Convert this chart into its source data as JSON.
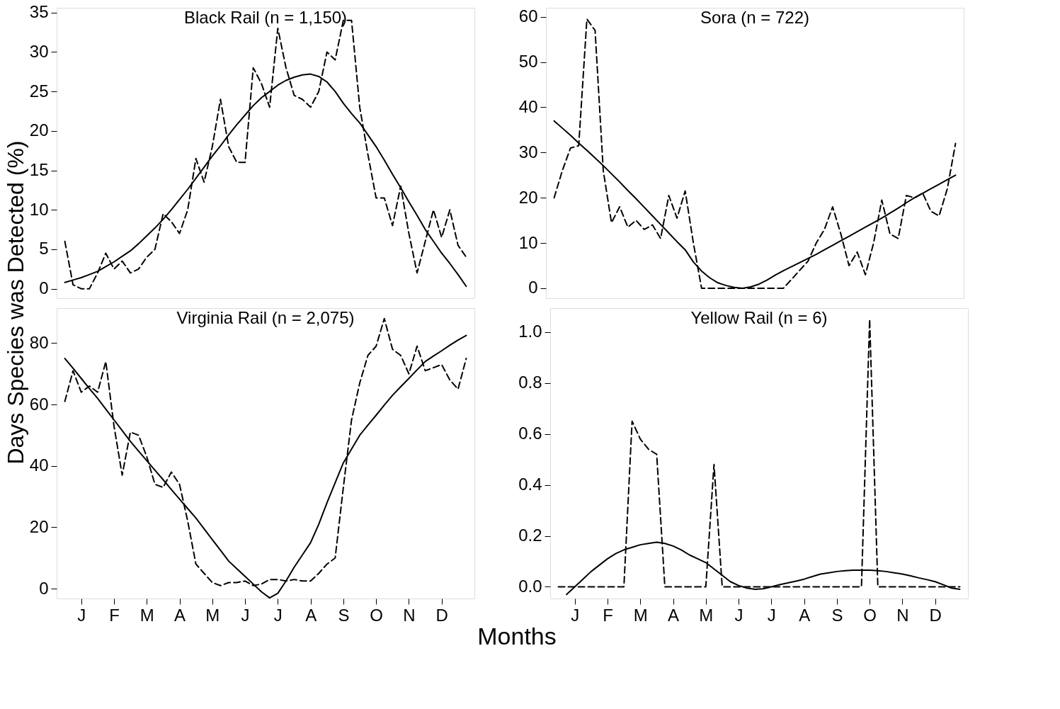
{
  "chart_data": [
    {
      "type": "line",
      "title": "Black Rail (n = 1,150)",
      "ylabel": "Days Species was Detected (%)",
      "ylim": [
        -1.2,
        35.6
      ],
      "yticks": [
        0,
        5,
        10,
        15,
        20,
        25,
        30,
        35
      ],
      "tick_labels": "y",
      "grid": false,
      "categories": [
        null,
        null,
        null,
        null,
        null,
        null,
        null,
        null,
        null,
        null,
        null,
        null,
        null,
        null,
        null,
        null,
        null,
        null,
        null,
        null,
        null,
        null,
        null,
        null,
        null,
        null,
        null,
        null,
        null,
        null,
        null,
        null,
        null,
        null,
        null,
        null,
        null,
        null,
        null,
        null,
        null,
        null,
        null,
        null,
        null,
        null,
        null,
        null,
        null,
        null
      ],
      "series": [
        {
          "color": "#000000",
          "line_style": "dashed",
          "values": [
            6,
            0.5,
            0,
            0,
            2,
            4.5,
            2.5,
            3.5,
            2,
            2.5,
            4,
            5,
            9.5,
            8.5,
            7,
            10,
            16.5,
            13.5,
            18,
            24,
            18,
            16,
            16,
            28,
            26,
            23,
            33,
            28,
            24.5,
            24,
            23,
            25,
            30,
            29,
            34,
            34,
            23,
            17,
            11.5,
            11.5,
            8,
            13,
            7,
            2,
            6,
            10,
            6.5,
            10,
            5.5,
            4
          ]
        },
        {
          "color": "#000000",
          "line_style": "solid",
          "values": [
            0.8,
            1.1,
            1.4,
            1.8,
            2.2,
            2.8,
            3.4,
            4.1,
            4.8,
            5.7,
            6.7,
            7.7,
            8.8,
            10,
            11.3,
            12.6,
            14,
            15.4,
            16.8,
            18.1,
            19.5,
            20.8,
            22,
            23.2,
            24.2,
            25,
            25.8,
            26.4,
            26.8,
            27.1,
            27.2,
            26.9,
            26.2,
            25,
            23.5,
            22.2,
            21,
            19.5,
            18,
            16.3,
            14.5,
            12.8,
            11,
            9.3,
            7.5,
            6,
            4.5,
            3.2,
            1.8,
            0.3
          ]
        }
      ]
    },
    {
      "type": "line",
      "title": "Sora (n = 722)",
      "ylim": [
        -2.2,
        62
      ],
      "yticks": [
        0,
        10,
        20,
        30,
        40,
        50,
        60
      ],
      "tick_labels": "y",
      "grid": false,
      "categories": [
        null,
        null,
        null,
        null,
        null,
        null,
        null,
        null,
        null,
        null,
        null,
        null,
        null,
        null,
        null,
        null,
        null,
        null,
        null,
        null,
        null,
        null,
        null,
        null,
        null,
        null,
        null,
        null,
        null,
        null,
        null,
        null,
        null,
        null,
        null,
        null,
        null,
        null,
        null,
        null,
        null,
        null,
        null,
        null,
        null,
        null,
        null,
        null,
        null,
        null
      ],
      "series": [
        {
          "color": "#000000",
          "line_style": "dashed",
          "values": [
            20,
            26,
            31,
            31.5,
            59.5,
            57,
            26,
            14.5,
            18,
            13.5,
            15,
            13,
            14,
            11,
            20.5,
            15.5,
            21.5,
            10,
            0,
            0,
            0,
            0,
            0,
            0,
            0,
            0,
            0,
            0,
            0,
            2,
            4,
            6,
            10,
            13,
            18,
            12,
            5,
            8,
            3,
            10,
            19.5,
            12,
            11,
            20.5,
            20,
            21,
            17,
            16,
            22,
            32
          ]
        },
        {
          "color": "#000000",
          "line_style": "solid",
          "values": [
            37,
            35.4,
            33.8,
            32.1,
            30.5,
            28.8,
            27.1,
            25.3,
            23.5,
            21.6,
            19.8,
            17.9,
            16,
            14.1,
            12.2,
            10.3,
            8.5,
            5.8,
            3.8,
            2.3,
            1.2,
            0.6,
            0.2,
            0,
            0.3,
            0.9,
            1.8,
            2.9,
            3.9,
            4.8,
            5.7,
            6.6,
            7.5,
            8.5,
            9.5,
            10.5,
            11.5,
            12.5,
            13.5,
            14.5,
            15.5,
            16.6,
            17.7,
            18.9,
            20,
            21,
            22,
            23,
            24,
            25
          ]
        }
      ]
    },
    {
      "type": "line",
      "title": "Virginia Rail (n = 2,075)",
      "xlabel": "Months",
      "ylim": [
        -3.2,
        91.4
      ],
      "yticks": [
        0,
        20,
        40,
        60,
        80
      ],
      "grid": false,
      "categories": [
        null,
        null,
        "J",
        null,
        null,
        null,
        "F",
        null,
        null,
        null,
        "M",
        null,
        null,
        null,
        "A",
        null,
        null,
        null,
        "M",
        null,
        null,
        null,
        "J",
        null,
        null,
        null,
        "J",
        null,
        null,
        null,
        "A",
        null,
        null,
        null,
        "S",
        null,
        null,
        null,
        "O",
        null,
        null,
        null,
        "N",
        null,
        null,
        null,
        "D",
        null,
        null,
        null
      ],
      "series": [
        {
          "color": "#000000",
          "line_style": "dashed",
          "values": [
            61,
            71,
            64,
            66,
            64,
            74,
            53,
            37,
            51,
            50,
            43,
            34,
            33,
            38,
            34,
            22,
            8,
            5,
            2,
            1,
            2,
            2,
            2.5,
            1,
            1.5,
            3,
            3,
            2.5,
            3,
            2.5,
            2.5,
            5,
            8,
            10,
            33,
            55,
            67,
            76,
            79,
            88,
            78,
            76,
            70,
            79,
            71,
            72,
            73,
            68,
            65,
            75
          ]
        },
        {
          "color": "#000000",
          "line_style": "solid",
          "values": [
            75,
            71.8,
            68.5,
            65.2,
            62,
            58.5,
            55,
            51.5,
            48,
            44.8,
            41.7,
            38.6,
            35.5,
            32.3,
            29.2,
            26.1,
            23,
            19.5,
            16,
            12.5,
            9,
            6.5,
            4,
            1.5,
            -1,
            -3,
            -1.5,
            2.5,
            7,
            11,
            15,
            21,
            28,
            34.5,
            41,
            45.5,
            50,
            53.3,
            56.5,
            59.8,
            63,
            65.8,
            68.5,
            71.3,
            74,
            75.8,
            77.5,
            79.3,
            81,
            82.5
          ]
        }
      ]
    },
    {
      "type": "line",
      "title": "Yellow Rail (n = 6)",
      "ylim": [
        -0.046,
        1.094
      ],
      "yticks": [
        {
          "value": 0,
          "label": "0.0"
        },
        0.2,
        0.4,
        0.6,
        0.8,
        {
          "value": 1,
          "label": "1.0"
        }
      ],
      "grid": false,
      "categories": [
        null,
        null,
        "J",
        null,
        null,
        null,
        "F",
        null,
        null,
        null,
        "M",
        null,
        null,
        null,
        "A",
        null,
        null,
        null,
        "M",
        null,
        null,
        null,
        "J",
        null,
        null,
        null,
        "J",
        null,
        null,
        null,
        "A",
        null,
        null,
        null,
        "S",
        null,
        null,
        null,
        "O",
        null,
        null,
        null,
        "N",
        null,
        null,
        null,
        "D",
        null,
        null,
        null
      ],
      "series": [
        {
          "color": "#000000",
          "line_style": "dashed",
          "values": [
            0,
            0,
            0,
            0,
            0,
            0,
            0,
            0,
            0,
            0.65,
            0.58,
            0.54,
            0.52,
            0,
            0,
            0,
            0,
            0,
            0,
            0.48,
            0,
            0,
            0,
            0,
            0,
            0,
            0,
            0,
            0,
            0,
            0,
            0,
            0,
            0,
            0,
            0,
            0,
            0,
            1.05,
            0,
            0,
            0,
            0,
            0,
            0,
            0,
            0,
            0,
            0,
            0
          ]
        },
        {
          "color": "#000000",
          "line_style": "solid",
          "values": [
            null,
            -0.03,
            0,
            0.03,
            0.06,
            0.085,
            0.11,
            0.13,
            0.145,
            0.155,
            0.165,
            0.17,
            0.175,
            0.17,
            0.16,
            0.145,
            0.125,
            0.11,
            0.095,
            0.07,
            0.045,
            0.02,
            0.005,
            -0.005,
            -0.01,
            -0.008,
            0,
            0.008,
            0.015,
            0.022,
            0.03,
            0.04,
            0.05,
            0.055,
            0.06,
            0.063,
            0.065,
            0.065,
            0.065,
            0.063,
            0.06,
            0.055,
            0.05,
            0.043,
            0.035,
            0.028,
            0.02,
            0.008,
            -0.005,
            -0.01
          ]
        }
      ]
    }
  ]
}
